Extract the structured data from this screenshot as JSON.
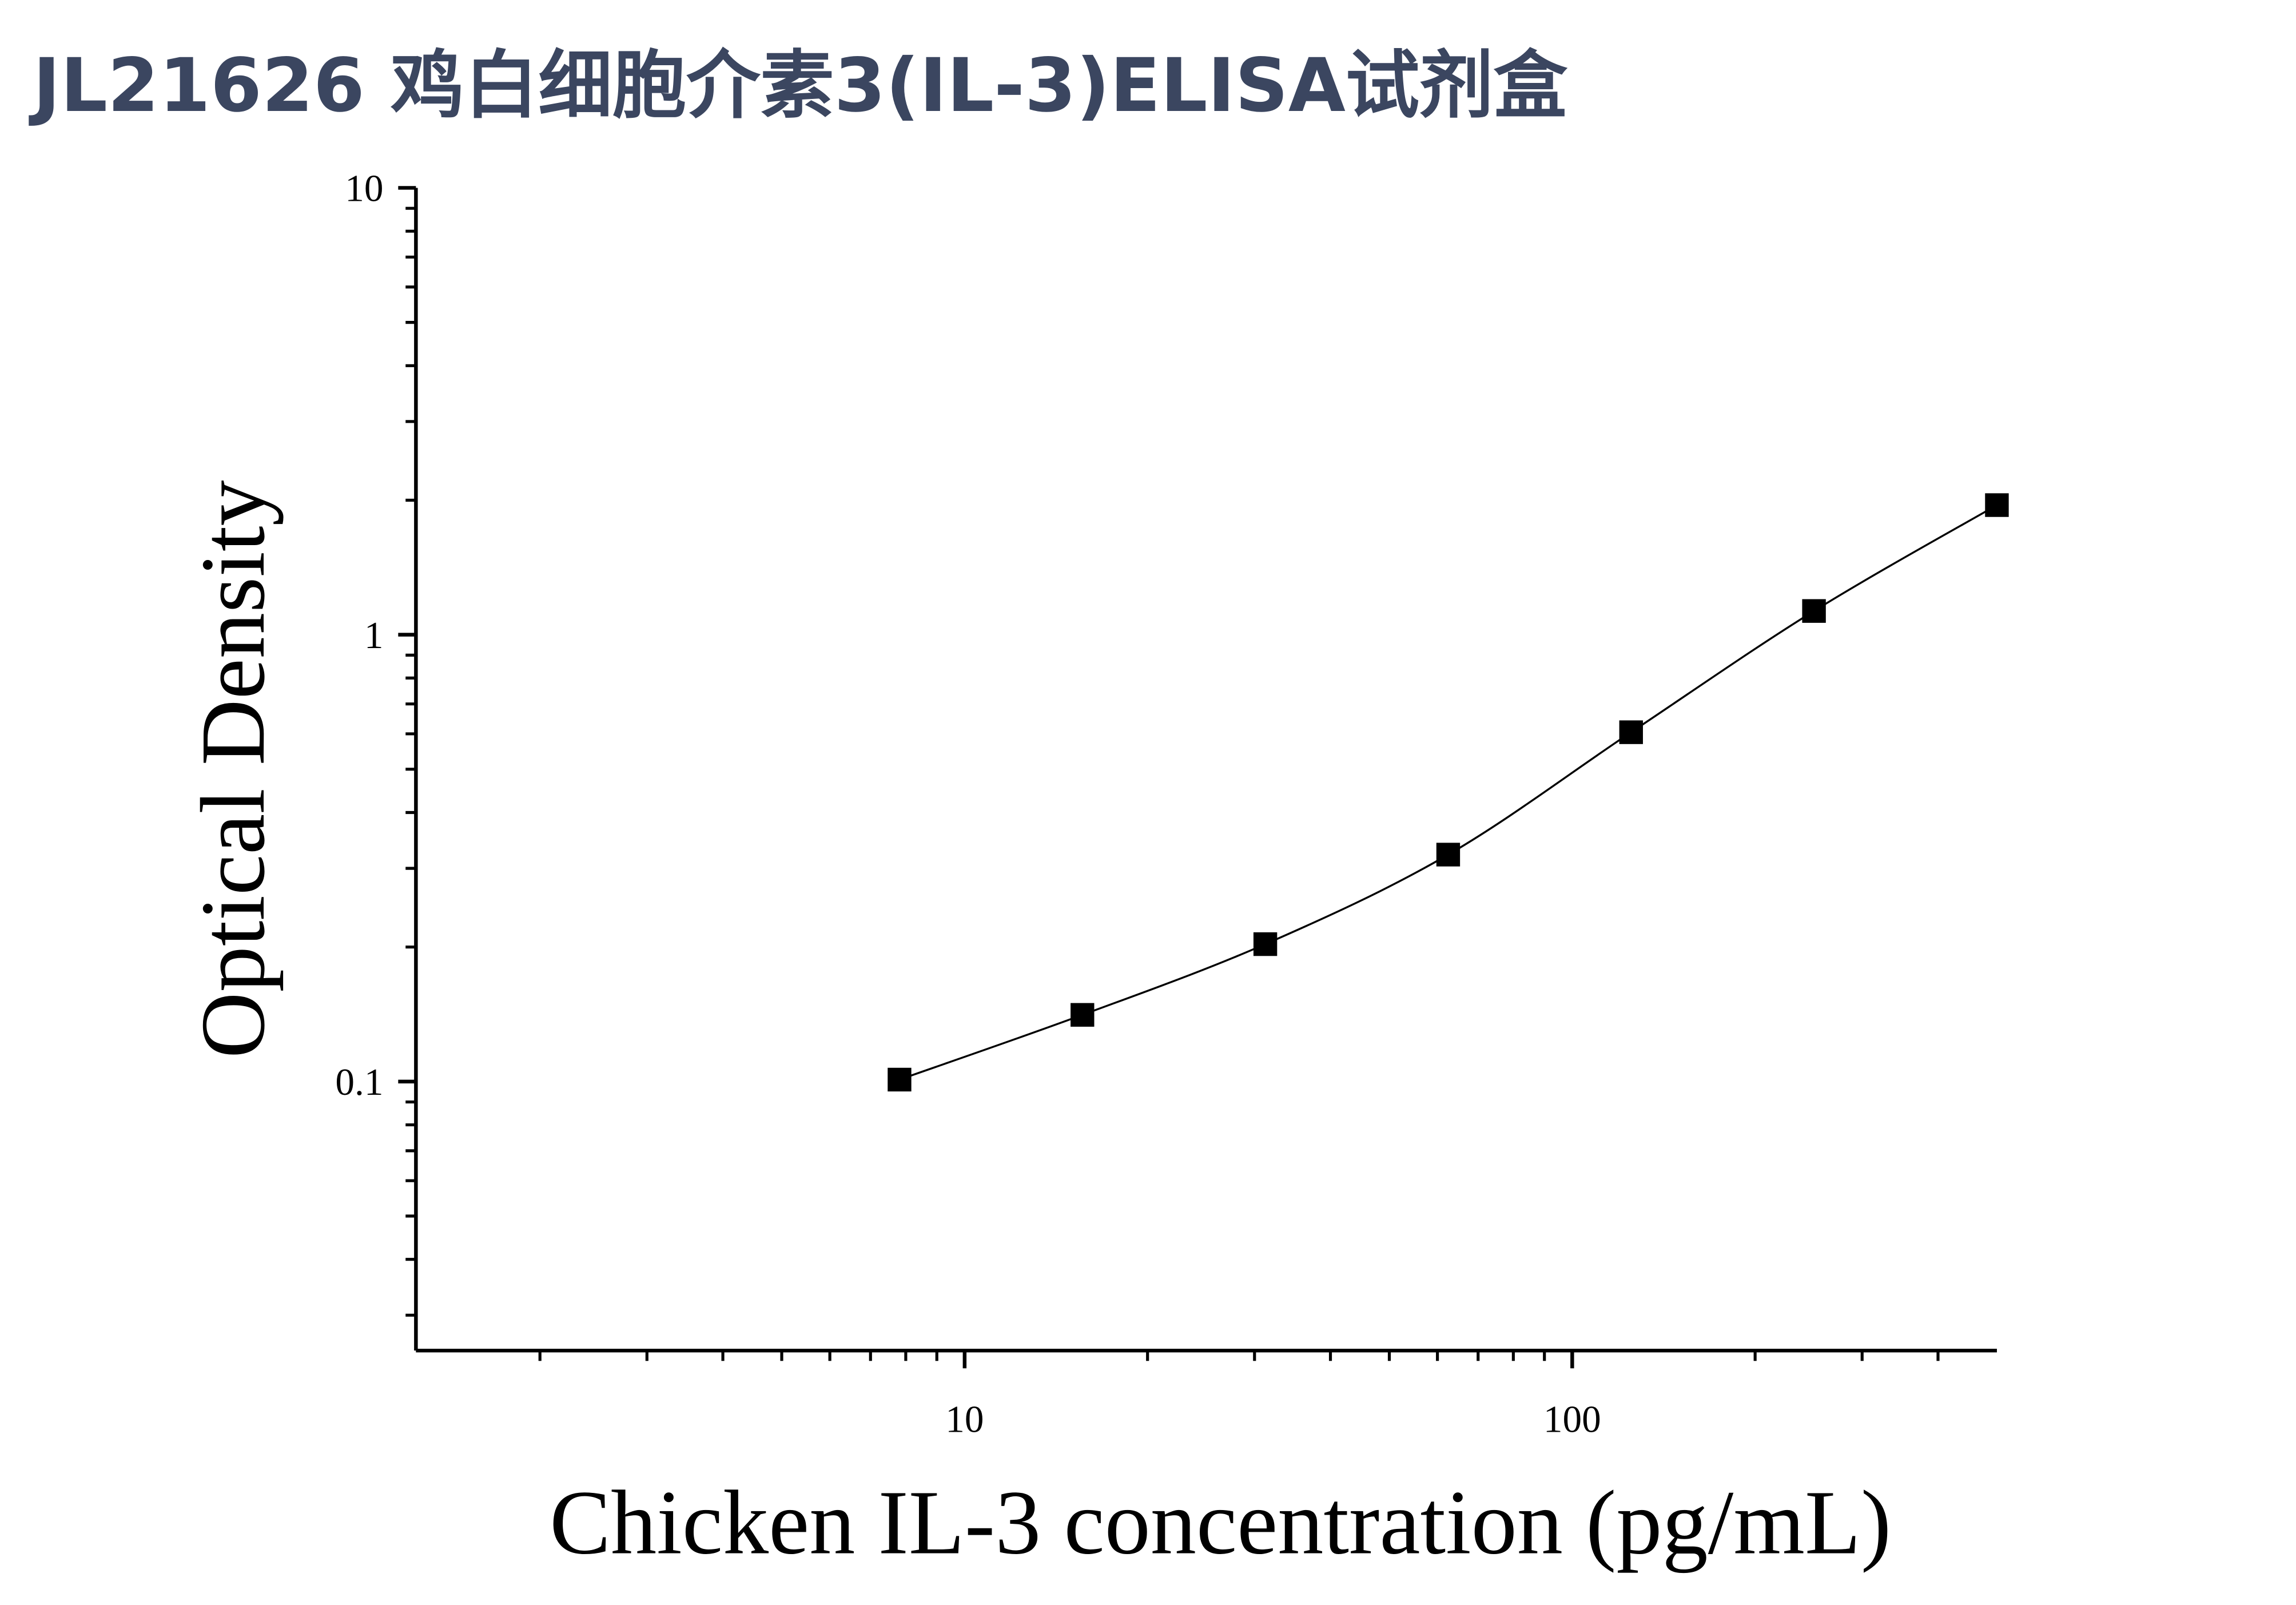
{
  "chart_data": {
    "type": "scatter",
    "title": "JL21626 鸡白细胞介素3(IL-3)ELISA试剂盒",
    "x_label": "Chicken IL-3 concentration (pg/mL)",
    "y_label": "Optical Density",
    "x_log": true,
    "y_log": true,
    "color": "#000000",
    "fit_line": true,
    "xlim": [
      1.25,
      500
    ],
    "ylim": [
      0.025,
      10
    ],
    "xticks": [
      10,
      100
    ],
    "yticks": [
      0.1,
      1,
      10
    ],
    "xminorticks": [
      2,
      3,
      4,
      5,
      6,
      7,
      8,
      9,
      20,
      30,
      40,
      50,
      60,
      70,
      80,
      90,
      200,
      300,
      400
    ],
    "yminorticks": [
      0.03,
      0.04,
      0.05,
      0.06,
      0.07,
      0.08,
      0.09,
      0.2,
      0.3,
      0.4,
      0.5,
      0.6,
      0.7,
      0.8,
      0.9,
      2,
      3,
      4,
      5,
      6,
      7,
      8,
      9
    ],
    "series": [
      {
        "x": [
          7.8125,
          15.625,
          31.25,
          62.5,
          125,
          250,
          500
        ],
        "values": [
          0.101,
          0.141,
          0.203,
          0.322,
          0.605,
          1.13,
          1.95
        ]
      }
    ]
  }
}
